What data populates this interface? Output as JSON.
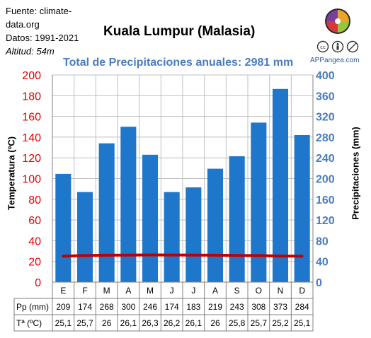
{
  "source": {
    "line1": "Fuente: climate-",
    "line2": "data.org",
    "line3": "Datos: 1991-2021",
    "line4": "Altitud: 54m"
  },
  "brand": "APPangea.com",
  "colors": {
    "bars": "#1f77cc",
    "temp_line": "#c00000",
    "left_axis": "#e00000",
    "right_axis": "#4a7cc0",
    "subtitle": "#4a7cc0"
  },
  "chart_data": {
    "type": "bar",
    "title": "Kuala Lumpur (Malasia)",
    "subtitle": "Total de Precipitaciones anuales: 2981 mm",
    "categories": [
      "E",
      "F",
      "M",
      "A",
      "M",
      "J",
      "J",
      "A",
      "S",
      "O",
      "N",
      "D"
    ],
    "series": [
      {
        "name": "Pp (mm)",
        "type": "bar",
        "axis": "right",
        "values": [
          209,
          174,
          268,
          300,
          246,
          174,
          183,
          219,
          243,
          308,
          373,
          284
        ]
      },
      {
        "name": "Tª (ºC)",
        "type": "line",
        "axis": "left",
        "values": [
          25.1,
          25.7,
          26,
          26.1,
          26.3,
          26.2,
          26.1,
          26,
          25.8,
          25.7,
          25.2,
          25.1
        ]
      }
    ],
    "ylabel_left": "Temperatura (ºC)",
    "ylabel_right": "Precipitaciones (mm)",
    "ylim_left": [
      0,
      200
    ],
    "ylim_right": [
      0,
      400
    ],
    "yticks_left": [
      0,
      20,
      40,
      60,
      80,
      100,
      120,
      140,
      160,
      180,
      200
    ],
    "yticks_right": [
      0,
      40,
      80,
      120,
      160,
      200,
      240,
      280,
      320,
      360,
      400
    ],
    "grid": true,
    "table": {
      "row_labels": [
        "Pp (mm)",
        "Tª (ºC)"
      ],
      "pp": [
        "209",
        "174",
        "268",
        "300",
        "246",
        "174",
        "183",
        "219",
        "243",
        "308",
        "373",
        "284"
      ],
      "temp": [
        "25,1",
        "25,7",
        "26",
        "26,1",
        "26,3",
        "26,2",
        "26,1",
        "26",
        "25,8",
        "25,7",
        "25,2",
        "25,1"
      ]
    }
  }
}
